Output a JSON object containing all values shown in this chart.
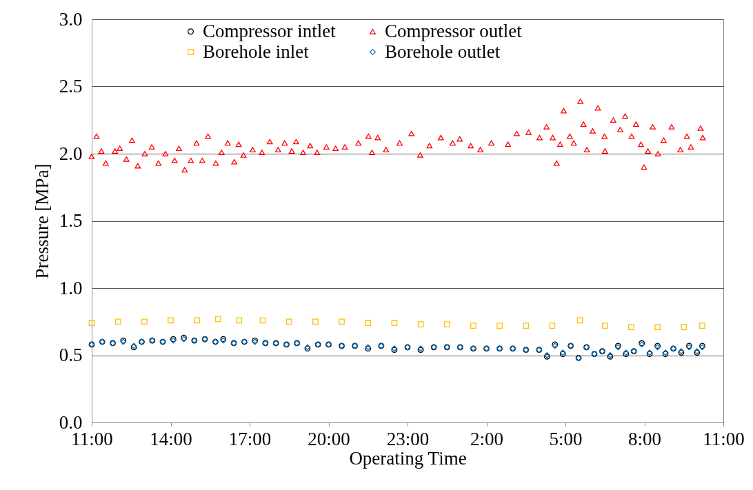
{
  "chart_data": {
    "type": "scatter",
    "xlabel": "Operating Time",
    "ylabel": "Pressure [MPa]",
    "xlim": [
      "2000-01-01T11:00",
      "2000-01-02T11:00"
    ],
    "xticks": [
      {
        "value": "2000-01-01T11:00",
        "label": "11:00"
      },
      {
        "value": "2000-01-01T14:00",
        "label": "14:00"
      },
      {
        "value": "2000-01-01T17:00",
        "label": "17:00"
      },
      {
        "value": "2000-01-01T20:00",
        "label": "20:00"
      },
      {
        "value": "2000-01-01T23:00",
        "label": "23:00"
      },
      {
        "value": "2000-01-02T02:00",
        "label": "2:00"
      },
      {
        "value": "2000-01-02T05:00",
        "label": "5:00"
      },
      {
        "value": "2000-01-02T08:00",
        "label": "8:00"
      },
      {
        "value": "2000-01-02T11:00",
        "label": "11:00"
      }
    ],
    "ylim": [
      0,
      3
    ],
    "yticks": [
      {
        "value": 0,
        "label": "0.0"
      },
      {
        "value": 0.5,
        "label": "0.5"
      },
      {
        "value": 1,
        "label": "1.0"
      },
      {
        "value": 1.5,
        "label": "1.5"
      },
      {
        "value": 2,
        "label": "2.0"
      },
      {
        "value": 2.5,
        "label": "2.5"
      },
      {
        "value": 3,
        "label": "3.0"
      }
    ],
    "grid": "y",
    "legend": "top",
    "x": [
      "2000-01-01T11:00",
      "2000-01-01T11:24",
      "2000-01-01T11:48",
      "2000-01-01T12:12",
      "2000-01-01T12:36",
      "2000-01-01T12:54",
      "2000-01-01T13:18",
      "2000-01-01T13:42",
      "2000-01-01T14:06",
      "2000-01-01T14:30",
      "2000-01-01T14:54",
      "2000-01-01T15:18",
      "2000-01-01T15:42",
      "2000-01-01T16:00",
      "2000-01-01T16:24",
      "2000-01-01T16:48",
      "2000-01-01T17:12",
      "2000-01-01T17:36",
      "2000-01-01T18:00",
      "2000-01-01T18:24",
      "2000-01-01T18:48",
      "2000-01-01T19:12",
      "2000-01-01T19:36",
      "2000-01-01T20:00",
      "2000-01-01T20:30",
      "2000-01-01T21:00",
      "2000-01-01T21:30",
      "2000-01-01T22:00",
      "2000-01-01T22:30",
      "2000-01-01T23:00",
      "2000-01-01T23:30",
      "2000-01-02T00:00",
      "2000-01-02T00:30",
      "2000-01-02T01:00",
      "2000-01-02T01:30",
      "2000-01-02T02:00",
      "2000-01-02T02:30",
      "2000-01-02T03:00",
      "2000-01-02T03:30",
      "2000-01-02T04:00",
      "2000-01-02T04:18",
      "2000-01-02T04:36",
      "2000-01-02T04:54",
      "2000-01-02T05:12",
      "2000-01-02T05:30",
      "2000-01-02T05:48",
      "2000-01-02T06:06",
      "2000-01-02T06:24",
      "2000-01-02T06:42",
      "2000-01-02T07:00",
      "2000-01-02T07:18",
      "2000-01-02T07:36",
      "2000-01-02T07:54",
      "2000-01-02T08:12",
      "2000-01-02T08:30",
      "2000-01-02T08:48",
      "2000-01-02T09:06",
      "2000-01-02T09:24",
      "2000-01-02T09:42",
      "2000-01-02T10:00",
      "2000-01-02T10:12"
    ],
    "series": [
      {
        "name": "Compressor intlet",
        "color": "#000000",
        "marker": "circle",
        "values": [
          0.58,
          0.6,
          0.59,
          0.61,
          0.56,
          0.6,
          0.61,
          0.6,
          0.62,
          0.63,
          0.61,
          0.62,
          0.6,
          0.62,
          0.59,
          0.6,
          0.61,
          0.59,
          0.59,
          0.58,
          0.59,
          0.55,
          0.58,
          0.58,
          0.57,
          0.57,
          0.55,
          0.57,
          0.54,
          0.56,
          0.54,
          0.56,
          0.56,
          0.56,
          0.55,
          0.55,
          0.55,
          0.55,
          0.54,
          0.54,
          0.49,
          0.58,
          0.51,
          0.57,
          0.48,
          0.56,
          0.51,
          0.53,
          0.49,
          0.57,
          0.51,
          0.53,
          0.59,
          0.51,
          0.57,
          0.51,
          0.55,
          0.52,
          0.57,
          0.52,
          0.57
        ]
      },
      {
        "name": "Compressor outlet",
        "color": "#ff0000",
        "marker": "triangle",
        "x": [
          "2000-01-01T11:00",
          "2000-01-01T11:11",
          "2000-01-01T11:22",
          "2000-01-01T11:32",
          "2000-01-01T11:53",
          "2000-01-01T12:04",
          "2000-01-01T12:19",
          "2000-01-01T12:32",
          "2000-01-01T12:45",
          "2000-01-01T13:01",
          "2000-01-01T13:17",
          "2000-01-01T13:32",
          "2000-01-01T13:48",
          "2000-01-01T14:09",
          "2000-01-01T14:19",
          "2000-01-01T14:32",
          "2000-01-01T14:46",
          "2000-01-01T14:59",
          "2000-01-01T15:12",
          "2000-01-01T15:25",
          "2000-01-01T15:43",
          "2000-01-01T15:56",
          "2000-01-01T16:10",
          "2000-01-01T16:25",
          "2000-01-01T16:35",
          "2000-01-01T16:46",
          "2000-01-01T17:07",
          "2000-01-01T17:28",
          "2000-01-01T17:46",
          "2000-01-01T18:05",
          "2000-01-01T18:20",
          "2000-01-01T18:36",
          "2000-01-01T18:46",
          "2000-01-01T19:02",
          "2000-01-01T19:18",
          "2000-01-01T19:34",
          "2000-01-01T19:55",
          "2000-01-01T20:16",
          "2000-01-01T20:37",
          "2000-01-01T21:08",
          "2000-01-01T21:31",
          "2000-01-01T21:39",
          "2000-01-01T21:52",
          "2000-01-01T22:11",
          "2000-01-01T22:42",
          "2000-01-01T23:09",
          "2000-01-01T23:29",
          "2000-01-01T23:50",
          "2000-01-02T00:16",
          "2000-01-02T00:43",
          "2000-01-02T00:59",
          "2000-01-02T01:24",
          "2000-01-02T01:46",
          "2000-01-02T02:11",
          "2000-01-02T02:49",
          "2000-01-02T03:09",
          "2000-01-02T03:36",
          "2000-01-02T04:01",
          "2000-01-02T04:17",
          "2000-01-02T04:31",
          "2000-01-02T04:40",
          "2000-01-02T04:48",
          "2000-01-02T04:56",
          "2000-01-02T05:10",
          "2000-01-02T05:19",
          "2000-01-02T05:34",
          "2000-01-02T05:41",
          "2000-01-02T05:49",
          "2000-01-02T06:02",
          "2000-01-02T06:14",
          "2000-01-02T06:29",
          "2000-01-02T06:30",
          "2000-01-02T06:49",
          "2000-01-02T07:05",
          "2000-01-02T07:16",
          "2000-01-02T07:31",
          "2000-01-02T07:41",
          "2000-01-02T07:52",
          "2000-01-02T07:59",
          "2000-01-02T08:08",
          "2000-01-02T08:19",
          "2000-01-02T08:31",
          "2000-01-02T08:44",
          "2000-01-02T09:02",
          "2000-01-02T09:22",
          "2000-01-02T09:37",
          "2000-01-02T09:46",
          "2000-01-02T10:08",
          "2000-01-02T10:13"
        ],
        "values": [
          1.98,
          2.13,
          2.02,
          1.93,
          2.02,
          2.04,
          1.96,
          2.1,
          1.91,
          2.0,
          2.05,
          1.93,
          2.0,
          1.95,
          2.04,
          1.88,
          1.95,
          2.08,
          1.95,
          2.13,
          1.93,
          2.01,
          2.08,
          1.94,
          2.07,
          1.99,
          2.03,
          2.01,
          2.09,
          2.03,
          2.08,
          2.02,
          2.09,
          2.01,
          2.06,
          2.01,
          2.05,
          2.04,
          2.05,
          2.08,
          2.13,
          2.01,
          2.12,
          2.03,
          2.08,
          2.15,
          1.99,
          2.06,
          2.12,
          2.08,
          2.11,
          2.06,
          2.03,
          2.08,
          2.07,
          2.15,
          2.16,
          2.12,
          2.2,
          2.12,
          1.93,
          2.07,
          2.32,
          2.13,
          2.08,
          2.39,
          2.22,
          2.03,
          2.17,
          2.34,
          2.13,
          2.02,
          2.25,
          2.18,
          2.28,
          2.13,
          2.22,
          2.07,
          1.9,
          2.02,
          2.2,
          2.0,
          2.1,
          2.2,
          2.03,
          2.13,
          2.05,
          2.19,
          2.12
        ]
      },
      {
        "name": "Borehole inlet",
        "color": "#ffc000",
        "marker": "square",
        "x": [
          "2000-01-01T11:00",
          "2000-01-01T12:00",
          "2000-01-01T13:00",
          "2000-01-01T14:00",
          "2000-01-01T15:00",
          "2000-01-01T15:48",
          "2000-01-01T16:36",
          "2000-01-01T17:30",
          "2000-01-01T18:30",
          "2000-01-01T19:30",
          "2000-01-01T20:30",
          "2000-01-01T21:30",
          "2000-01-01T22:30",
          "2000-01-01T23:30",
          "2000-01-02T00:30",
          "2000-01-02T01:30",
          "2000-01-02T02:30",
          "2000-01-02T03:30",
          "2000-01-02T04:30",
          "2000-01-02T05:33",
          "2000-01-02T06:30",
          "2000-01-02T07:30",
          "2000-01-02T08:30",
          "2000-01-02T09:30",
          "2000-01-02T10:12"
        ],
        "values": [
          0.74,
          0.75,
          0.75,
          0.76,
          0.76,
          0.77,
          0.76,
          0.76,
          0.75,
          0.75,
          0.75,
          0.74,
          0.74,
          0.73,
          0.73,
          0.72,
          0.72,
          0.72,
          0.72,
          0.76,
          0.72,
          0.71,
          0.71,
          0.71,
          0.72
        ]
      },
      {
        "name": "Borehole outlet",
        "color": "#0070c0",
        "marker": "diamond",
        "values": [
          0.58,
          0.6,
          0.59,
          0.6,
          0.57,
          0.6,
          0.61,
          0.6,
          0.61,
          0.62,
          0.61,
          0.62,
          0.6,
          0.61,
          0.59,
          0.6,
          0.6,
          0.59,
          0.59,
          0.58,
          0.59,
          0.56,
          0.58,
          0.58,
          0.57,
          0.57,
          0.56,
          0.57,
          0.55,
          0.56,
          0.55,
          0.56,
          0.56,
          0.56,
          0.55,
          0.55,
          0.55,
          0.55,
          0.54,
          0.54,
          0.5,
          0.57,
          0.52,
          0.57,
          0.48,
          0.56,
          0.51,
          0.53,
          0.5,
          0.56,
          0.52,
          0.53,
          0.58,
          0.52,
          0.56,
          0.52,
          0.55,
          0.53,
          0.56,
          0.53,
          0.56
        ]
      }
    ]
  }
}
